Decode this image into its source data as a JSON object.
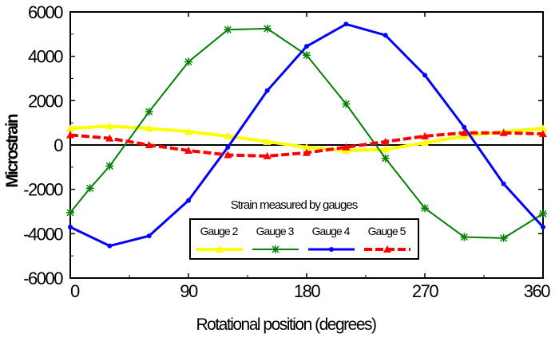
{
  "chart_data": {
    "type": "line",
    "title": "",
    "xlabel": "Rotational position (degrees)",
    "ylabel": "Microstrain",
    "xlim": [
      0,
      360
    ],
    "ylim": [
      -6000,
      6000
    ],
    "x_ticks": [
      "0",
      "90",
      "180",
      "270",
      "360"
    ],
    "y_ticks": [
      "6000",
      "4000",
      "2000",
      "0",
      "-2000",
      "-4000",
      "-6000"
    ],
    "legend_title": "Strain measured by gauges",
    "legend_position": "bottom-center",
    "grid": false,
    "series": [
      {
        "name": "Gauge 2",
        "color": "#ffff00",
        "marker": "triangle",
        "x": [
          0,
          30,
          60,
          90,
          120,
          150,
          180,
          210,
          240,
          270,
          300,
          330,
          360
        ],
        "y": [
          750,
          850,
          750,
          600,
          400,
          150,
          -100,
          -250,
          -200,
          100,
          400,
          600,
          750
        ]
      },
      {
        "name": "Gauge 3",
        "color": "#008000",
        "marker": "asterisk",
        "x": [
          0,
          15,
          30,
          60,
          90,
          120,
          150,
          180,
          210,
          240,
          270,
          300,
          330,
          360
        ],
        "y": [
          -3050,
          -1950,
          -950,
          1500,
          3750,
          5200,
          5250,
          4050,
          1850,
          -600,
          -2850,
          -4150,
          -4200,
          -3100
        ]
      },
      {
        "name": "Gauge 4",
        "color": "#0000ff",
        "marker": "dot",
        "x": [
          0,
          30,
          60,
          90,
          120,
          150,
          180,
          210,
          240,
          270,
          300,
          330,
          360
        ],
        "y": [
          -3700,
          -4550,
          -4100,
          -2500,
          -100,
          2450,
          4450,
          5450,
          4950,
          3150,
          800,
          -1750,
          -3700
        ]
      },
      {
        "name": "Gauge 5",
        "color": "#ff0000",
        "marker": "triangle",
        "x": [
          0,
          30,
          60,
          90,
          120,
          150,
          180,
          210,
          240,
          270,
          300,
          330,
          360
        ],
        "y": [
          450,
          300,
          0,
          -250,
          -450,
          -500,
          -350,
          -100,
          150,
          400,
          550,
          550,
          500
        ]
      }
    ]
  }
}
